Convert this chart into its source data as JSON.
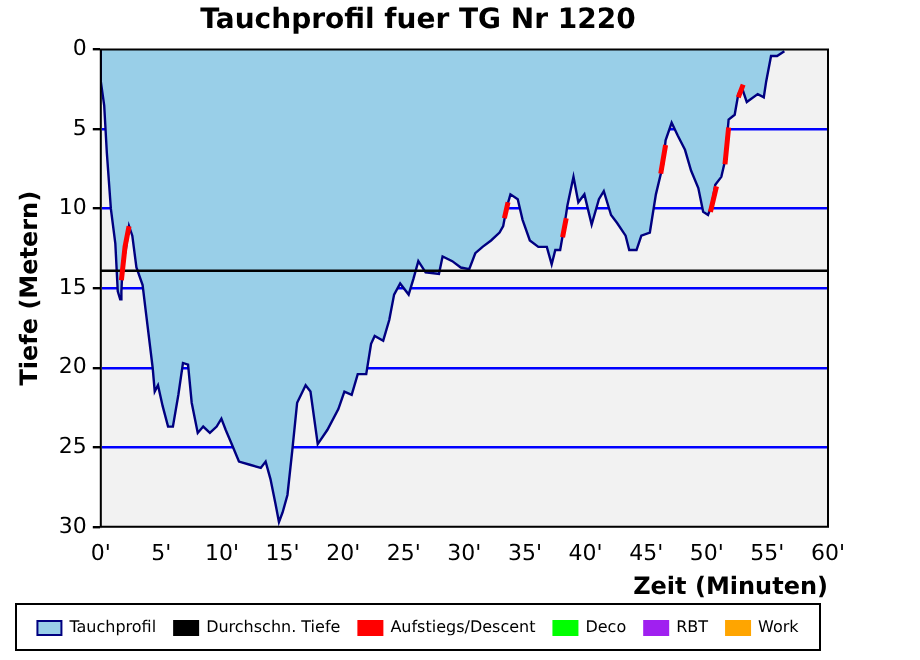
{
  "chart_data": {
    "type": "area",
    "title": "Tauchprofil fuer TG Nr 1220",
    "xlabel": "Zeit (Minuten)",
    "ylabel": "Tiefe (Metern)",
    "xlim": [
      0,
      60
    ],
    "xticks": [
      {
        "value": 0,
        "label": "0'"
      },
      {
        "value": 5,
        "label": "5'"
      },
      {
        "value": 10,
        "label": "10'"
      },
      {
        "value": 15,
        "label": "15'"
      },
      {
        "value": 20,
        "label": "20'"
      },
      {
        "value": 25,
        "label": "25'"
      },
      {
        "value": 30,
        "label": "30'"
      },
      {
        "value": 35,
        "label": "35'"
      },
      {
        "value": 40,
        "label": "40'"
      },
      {
        "value": 45,
        "label": "45'"
      },
      {
        "value": 50,
        "label": "50'"
      },
      {
        "value": 55,
        "label": "55'"
      },
      {
        "value": 60,
        "label": "60'"
      }
    ],
    "ylim": [
      30,
      0
    ],
    "yticks": [
      0,
      5,
      10,
      15,
      20,
      25,
      30
    ],
    "grid": "y",
    "legend": "bottom",
    "ref_lines": [
      {
        "axis": "y",
        "value": 13.9,
        "label": "Durchschn. Tiefe",
        "color": "#000000"
      }
    ],
    "series": [
      {
        "name": "Tauchprofil",
        "color": "#99cfe8",
        "x": [
          0,
          0,
          0.28,
          0.5,
          0.83,
          1.2,
          1.4,
          1.6,
          1.7,
          1.8,
          2.06,
          2.33,
          2.6,
          2.94,
          3.45,
          3.72,
          4.28,
          4.45,
          4.72,
          5.1,
          5.55,
          5.95,
          6.4,
          6.78,
          7.2,
          7.5,
          8.0,
          8.45,
          9.0,
          9.56,
          9.95,
          10.3,
          10.8,
          11.4,
          12.3,
          13.2,
          13.6,
          14.0,
          14.4,
          14.7,
          15.0,
          15.4,
          15.8,
          16.2,
          16.9,
          17.3,
          17.9,
          18.7,
          19.6,
          20.1,
          20.7,
          21.2,
          21.9,
          22.3,
          22.6,
          23.3,
          23.8,
          24.2,
          24.7,
          25.4,
          25.8,
          26.2,
          26.8,
          27.9,
          28.2,
          29.0,
          29.7,
          30.4,
          30.9,
          31.5,
          32.2,
          32.9,
          33.2,
          33.5,
          33.8,
          34.4,
          34.8,
          35.4,
          36.1,
          36.8,
          37.2,
          37.5,
          37.9,
          38.2,
          38.5,
          39.0,
          39.4,
          39.9,
          40.5,
          41.1,
          41.5,
          42.1,
          42.6,
          43.3,
          43.6,
          44.2,
          44.6,
          45.3,
          45.8,
          46.4,
          46.6,
          47.1,
          47.6,
          48.2,
          48.7,
          49.3,
          49.7,
          50.1,
          50.4,
          50.7,
          51.2,
          51.5,
          51.8,
          52.3,
          52.6,
          52.9,
          53.3,
          54.2,
          54.7,
          54.9,
          55.3,
          55.8,
          56.4
        ],
        "values": [
          0,
          2.0,
          3.5,
          6.5,
          10,
          12.2,
          15.2,
          15.7,
          15.2,
          13.5,
          12.6,
          11.1,
          11.7,
          13.7,
          14.8,
          16.5,
          20,
          21.5,
          21.1,
          22.4,
          23.7,
          23.7,
          21.7,
          19.7,
          19.8,
          22.2,
          24.1,
          23.7,
          24.1,
          23.7,
          23.2,
          23.9,
          24.8,
          25.9,
          26.1,
          26.3,
          25.9,
          27,
          28.5,
          29.7,
          29.1,
          28,
          25.2,
          22.2,
          21.1,
          21.5,
          24.8,
          23.9,
          22.6,
          21.5,
          21.7,
          20.4,
          20.4,
          18.5,
          18,
          18.3,
          17,
          15.4,
          14.7,
          15.4,
          14.4,
          13.3,
          14,
          14.1,
          13,
          13.3,
          13.7,
          13.8,
          12.8,
          12.4,
          12,
          11.5,
          11.1,
          9.9,
          9.1,
          9.4,
          10.7,
          12,
          12.4,
          12.4,
          13.5,
          12.6,
          12.6,
          11.3,
          9.8,
          8,
          9.6,
          9.1,
          11,
          9.4,
          8.9,
          10.4,
          10.9,
          11.7,
          12.6,
          12.6,
          11.7,
          11.5,
          9.1,
          7.2,
          5.7,
          4.6,
          5.4,
          6.3,
          7.6,
          8.7,
          10.2,
          10.4,
          9.8,
          8.5,
          8,
          7,
          4.4,
          4.1,
          2.8,
          2.4,
          3.3,
          2.8,
          3,
          2,
          0.4,
          0.4,
          0.1
        ]
      },
      {
        "name": "Aufstiegs/Descent",
        "type": "line",
        "color": "#ff0000",
        "x": [
          1.7,
          2.0,
          2.33,
          20,
          33.3,
          33.6,
          36,
          38.1,
          38.4,
          42,
          46.2,
          46.6,
          48,
          50.3,
          50.8,
          51.2,
          51.5,
          51.8,
          52.2,
          52.6,
          53.0
        ],
        "values": [
          14.5,
          12.4,
          11.1,
          null,
          10.6,
          9.6,
          null,
          11.8,
          10.6,
          null,
          7.8,
          6.0,
          null,
          10.2,
          8.6,
          null,
          7.2,
          4.9,
          null,
          3.0,
          2.2
        ]
      },
      {
        "name": "Deco",
        "type": "line",
        "color": "#00ff00"
      },
      {
        "name": "RBT",
        "type": "line",
        "color": "#a020f0"
      },
      {
        "name": "Work",
        "type": "line",
        "color": "#ffa500"
      }
    ]
  }
}
